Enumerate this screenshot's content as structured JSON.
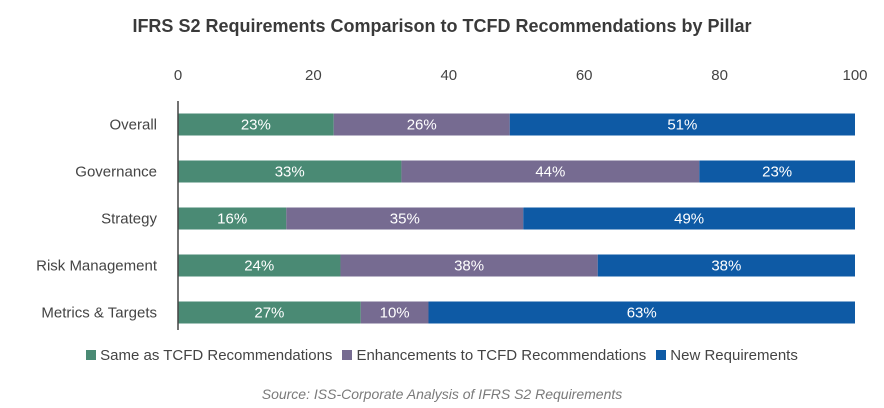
{
  "chart_data": {
    "type": "bar",
    "orientation": "horizontal",
    "stacked": true,
    "title": "IFRS S2 Requirements Comparison to TCFD Recommendations by Pillar",
    "categories": [
      "Overall",
      "Governance",
      "Strategy",
      "Risk Management",
      "Metrics & Targets"
    ],
    "series": [
      {
        "name": "Same as TCFD Recommendations",
        "values": [
          23,
          33,
          16,
          24,
          27
        ],
        "labels": [
          "23%",
          "33%",
          "16%",
          "24%",
          "27%"
        ],
        "color": "#4a8a74"
      },
      {
        "name": "Enhancements to TCFD Recommendations",
        "values": [
          26,
          44,
          35,
          38,
          10
        ],
        "labels": [
          "26%",
          "44%",
          "35%",
          "38%",
          "10%"
        ],
        "color": "#766b91"
      },
      {
        "name": "New Requirements",
        "values": [
          51,
          23,
          49,
          38,
          63
        ],
        "labels": [
          "51%",
          "23%",
          "49%",
          "38%",
          "63%"
        ],
        "color": "#0e5aa5"
      }
    ],
    "xlim": [
      0,
      100
    ],
    "xticks": [
      "0",
      "20",
      "40",
      "60",
      "80",
      "100"
    ],
    "axis_position": "top",
    "grid": false,
    "legend": "bottom",
    "source": "Source: ISS-Corporate Analysis of IFRS S2 Requirements"
  }
}
